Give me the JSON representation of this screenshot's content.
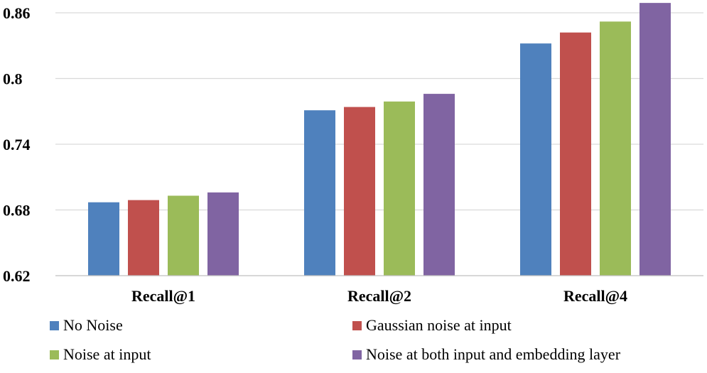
{
  "chart_data": {
    "type": "bar",
    "title": "",
    "xlabel": "",
    "ylabel": "",
    "categories": [
      "Recall@1",
      "Recall@2",
      "Recall@4"
    ],
    "ylim": [
      0.62,
      0.86
    ],
    "yticks": [
      "0.62",
      "0.68",
      "0.74",
      "0.8",
      "0.86"
    ],
    "grid": true,
    "legend_position": "bottom",
    "series": [
      {
        "name": "No Noise",
        "color": "#4f81bd",
        "values": [
          0.687,
          0.771,
          0.832
        ]
      },
      {
        "name": "Gaussian noise at input",
        "color": "#c0504d",
        "values": [
          0.689,
          0.774,
          0.842
        ]
      },
      {
        "name": "Noise at input",
        "color": "#9bbb59",
        "values": [
          0.693,
          0.779,
          0.852
        ]
      },
      {
        "name": "Noise at both input and embedding layer",
        "color": "#8064a2",
        "values": [
          0.696,
          0.786,
          0.869
        ]
      }
    ]
  }
}
